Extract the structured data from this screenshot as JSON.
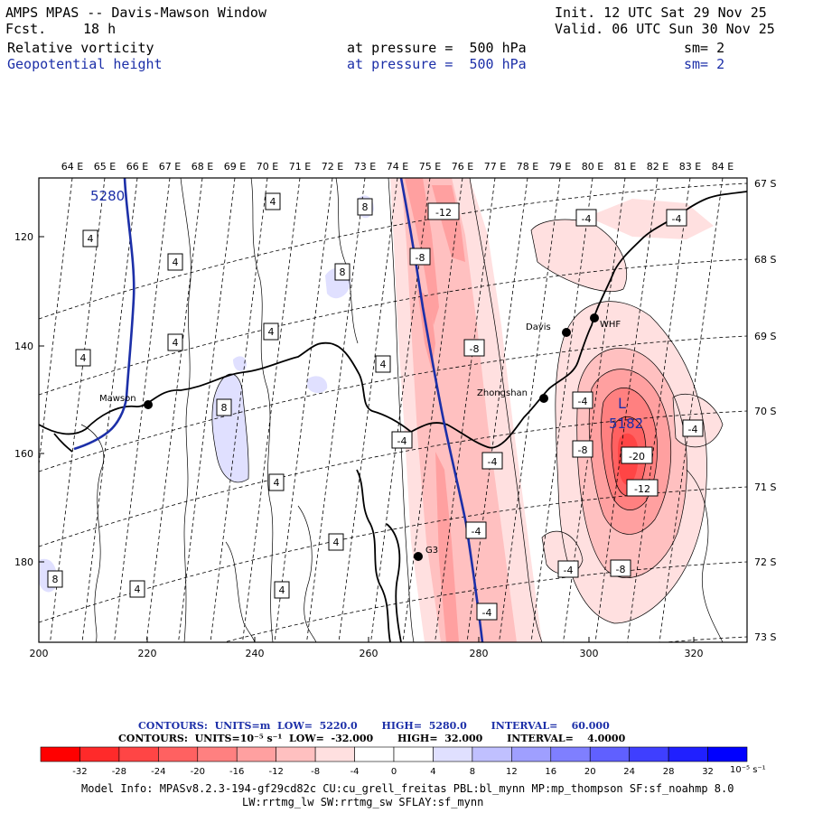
{
  "header": {
    "title": "AMPS MPAS -- Davis-Mawson Window",
    "fcst_label": "Fcst.",
    "fcst_value": "18 h",
    "init": "Init. 12 UTC Sat 29 Nov 25",
    "valid": "Valid. 06 UTC Sun 30 Nov 25"
  },
  "fields": [
    {
      "name": "Relative vorticity",
      "level": "at pressure =  500 hPa",
      "sm": "sm= 2",
      "color": "#000000"
    },
    {
      "name": "Geopotential height",
      "level": "at pressure =  500 hPa",
      "sm": "sm= 2",
      "color": "#1c2fa8"
    }
  ],
  "top_lon_labels": [
    "64 E",
    "65 E",
    "66 E",
    "67 E",
    "68 E",
    "69 E",
    "70 E",
    "71 E",
    "72 E",
    "73 E",
    "74 E",
    "75 E",
    "76 E",
    "77 E",
    "78 E",
    "79 E",
    "80 E",
    "81 E",
    "82 E",
    "83 E",
    "84 E"
  ],
  "right_lat_labels": [
    "67 S",
    "68 S",
    "69 S",
    "70 S",
    "71 S",
    "72 S",
    "73 S"
  ],
  "x_axis": {
    "ticks": [
      "200",
      "220",
      "240",
      "260",
      "280",
      "300",
      "320"
    ]
  },
  "y_axis": {
    "ticks": [
      "120",
      "140",
      "160",
      "180"
    ]
  },
  "stations": [
    {
      "name": "Mawson"
    },
    {
      "name": "Davis"
    },
    {
      "name": "WHF"
    },
    {
      "name": "Zhongshan"
    },
    {
      "name": "G3"
    }
  ],
  "height_labels": {
    "c5280": "5280",
    "low_letter": "L",
    "low_value": "5182"
  },
  "vorticity_labels": {
    "n4": "-4",
    "n8": "-8",
    "n12": "-12",
    "n20": "-20",
    "p4": "4",
    "p8": "8"
  },
  "contour_info": {
    "line1": {
      "label": "CONTOURS:",
      "units": "UNITS=m",
      "low": "LOW=  5220.0",
      "high": "HIGH=  5280.0",
      "interval": "INTERVAL=    60.000"
    },
    "line2": {
      "label": "CONTOURS:",
      "units": "UNITS=10⁻⁵ s⁻¹",
      "low": "LOW=  -32.000",
      "high": "HIGH=  32.000",
      "interval": "INTERVAL=    4.0000"
    }
  },
  "colorbar": {
    "colors": [
      "#ff0000",
      "#ff2a2a",
      "#ff4545",
      "#ff6161",
      "#ff8080",
      "#ffa0a0",
      "#ffc0c0",
      "#ffe0e0",
      "#ffffff",
      "#ffffff",
      "#e0e0ff",
      "#c0c0ff",
      "#9f9fff",
      "#7f7fff",
      "#6060ff",
      "#3f3fff",
      "#2020ff",
      "#0000ff"
    ],
    "labels": [
      "-32",
      "-28",
      "-24",
      "-20",
      "-16",
      "-12",
      "-8",
      "-4",
      "0",
      "4",
      "8",
      "12",
      "16",
      "20",
      "24",
      "28",
      "32"
    ],
    "units": "10⁻⁵ s⁻¹"
  },
  "model_info": {
    "line1": "Model Info: MPASv8.2.3-194-gf29cd82c CU:cu_grell_freitas PBL:bl_mynn MP:mp_thompson SF:sf_noahmp 8.0",
    "line2": "LW:rrtmg_lw SW:rrtmg_sw SFLAY:sf_mynn"
  }
}
